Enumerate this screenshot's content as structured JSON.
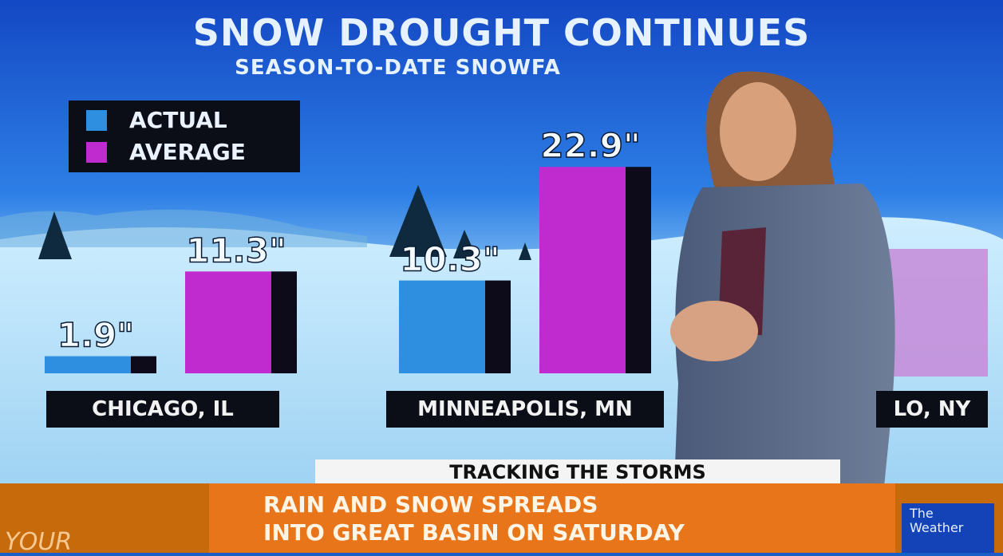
{
  "chart_data": {
    "type": "bar",
    "title": "SNOW DROUGHT CONTINUES",
    "subtitle": "SEASON-TO-DATE SNOWFA",
    "categories": [
      "CHICAGO, IL",
      "MINNEAPOLIS, MN",
      "LO, NY"
    ],
    "series": [
      {
        "name": "ACTUAL",
        "color": "#2e8fe0",
        "values": [
          1.9,
          10.3,
          null
        ]
      },
      {
        "name": "AVERAGE",
        "color": "#c02bd0",
        "values": [
          11.3,
          22.9,
          null
        ]
      }
    ],
    "data_labels": [
      "1.9\"",
      "11.3\"",
      "10.3\"",
      "22.9\""
    ],
    "legend_position": "top-left"
  },
  "ticker": {
    "header": "TRACKING THE STORMS",
    "line1": "RAIN AND SNOW SPREADS",
    "line2": "INTO GREAT BASIN ON SATURDAY"
  },
  "bottom_left_text": "YOUR",
  "logo": {
    "line1": "The",
    "line2": "Weather"
  }
}
